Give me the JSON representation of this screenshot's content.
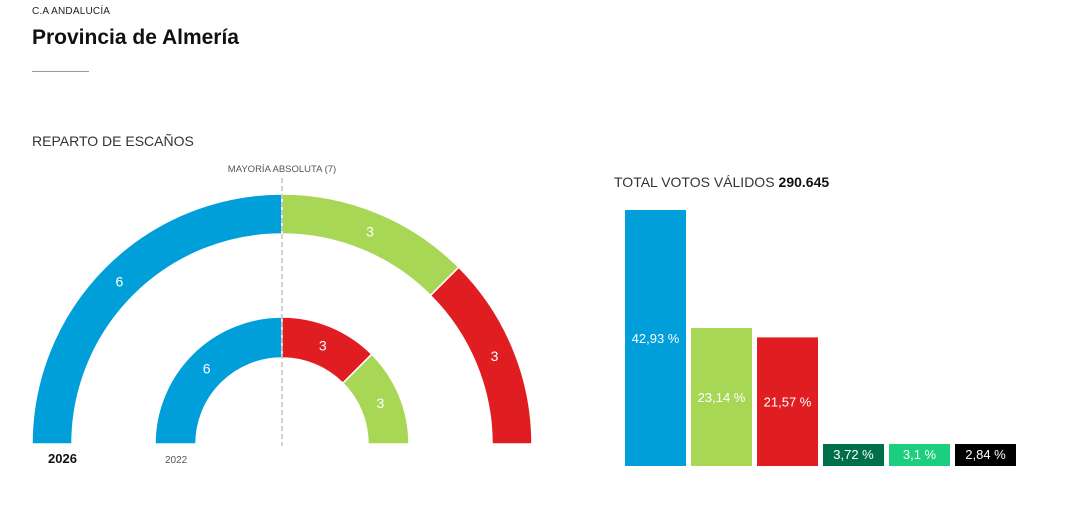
{
  "header": {
    "kicker": "C.A ANDALUCÍA",
    "title": "Provincia de Almería"
  },
  "seats": {
    "section_title": "REPARTO DE ESCAÑOS",
    "majority_label": "MAYORÍA ABSOLUTA (7)",
    "chart_data": {
      "type": "semicircle-donut",
      "rings": [
        {
          "year": "2026",
          "segments": [
            {
              "seats": 6,
              "color": "#009fd9"
            },
            {
              "seats": 3,
              "color": "#a8d655"
            },
            {
              "seats": 3,
              "color": "#e01e22"
            }
          ]
        },
        {
          "year": "2022",
          "segments": [
            {
              "seats": 6,
              "color": "#009fd9"
            },
            {
              "seats": 3,
              "color": "#e01e22"
            },
            {
              "seats": 3,
              "color": "#a8d655"
            }
          ]
        }
      ]
    }
  },
  "votes": {
    "total_label": "TOTAL VOTOS VÁLIDOS",
    "total_value": "290.645",
    "chart_data": {
      "type": "bar",
      "bars": [
        {
          "value": 42.93,
          "label": "42,93 %",
          "color": "#009fd9"
        },
        {
          "value": 23.14,
          "label": "23,14 %",
          "color": "#a8d655"
        },
        {
          "value": 21.57,
          "label": "21,57 %",
          "color": "#e01e22"
        },
        {
          "value": 3.72,
          "label": "3,72 %",
          "color": "#00704a"
        },
        {
          "value": 3.1,
          "label": "3,1 %",
          "color": "#1ccf7e"
        },
        {
          "value": 2.84,
          "label": "2,84 %",
          "color": "#000000"
        }
      ]
    }
  }
}
